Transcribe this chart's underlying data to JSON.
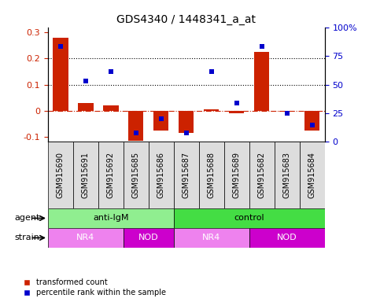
{
  "title": "GDS4340 / 1448341_a_at",
  "samples": [
    "GSM915690",
    "GSM915691",
    "GSM915692",
    "GSM915685",
    "GSM915686",
    "GSM915687",
    "GSM915688",
    "GSM915689",
    "GSM915682",
    "GSM915683",
    "GSM915684"
  ],
  "transformed_count": [
    0.28,
    0.03,
    0.02,
    -0.115,
    -0.075,
    -0.085,
    0.005,
    -0.01,
    0.225,
    -0.005,
    -0.075
  ],
  "percentile_rank_pct": [
    83,
    53,
    61,
    8,
    20,
    8,
    61,
    34,
    83,
    25,
    15
  ],
  "ylim_left": [
    -0.12,
    0.32
  ],
  "ylim_right": [
    0,
    100
  ],
  "yticks_left": [
    -0.1,
    0.0,
    0.1,
    0.2,
    0.3
  ],
  "yticks_right": [
    0,
    25,
    50,
    75,
    100
  ],
  "ytick_labels_left": [
    "-0.1",
    "0",
    "0.1",
    "0.2",
    "0.3"
  ],
  "ytick_labels_right": [
    "0",
    "25",
    "50",
    "75",
    "100%"
  ],
  "hlines": [
    0.1,
    0.2
  ],
  "agent_groups": [
    {
      "label": "anti-IgM",
      "start": 0,
      "end": 5,
      "color": "#90EE90"
    },
    {
      "label": "control",
      "start": 5,
      "end": 11,
      "color": "#44DD44"
    }
  ],
  "strain_groups": [
    {
      "label": "NR4",
      "start": 0,
      "end": 3,
      "color": "#EE82EE"
    },
    {
      "label": "NOD",
      "start": 3,
      "end": 5,
      "color": "#CC00CC"
    },
    {
      "label": "NR4",
      "start": 5,
      "end": 8,
      "color": "#EE82EE"
    },
    {
      "label": "NOD",
      "start": 8,
      "end": 11,
      "color": "#CC00CC"
    }
  ],
  "bar_color": "#CC2200",
  "dot_color": "#0000CC",
  "bar_width": 0.6,
  "dot_size": 22,
  "zero_line_color": "#CC2200",
  "grid_color": "#000000",
  "bg_color": "#FFFFFF",
  "label_row1": "agent",
  "label_row2": "strain",
  "legend_bar": "transformed count",
  "legend_dot": "percentile rank within the sample",
  "sample_box_color": "#DDDDDD",
  "strain_NR4_text": "NR4",
  "strain_NOD_text": "NOD",
  "tick_label_fontsize": 7,
  "row_label_fontsize": 8,
  "group_label_fontsize": 8
}
